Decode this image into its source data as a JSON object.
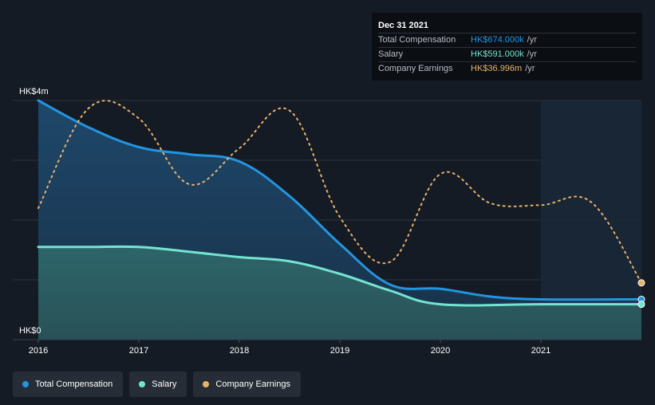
{
  "tooltip": {
    "date": "Dec 31 2021",
    "rows": [
      {
        "label": "Total Compensation",
        "value": "HK$674.000k",
        "unit": "/yr",
        "color": "#2394df"
      },
      {
        "label": "Salary",
        "value": "HK$591.000k",
        "unit": "/yr",
        "color": "#74e4d1"
      },
      {
        "label": "Company Earnings",
        "value": "HK$36.996m",
        "unit": "/yr",
        "color": "#e9b26b"
      }
    ]
  },
  "legend": [
    {
      "label": "Total Compensation",
      "color": "#2394df"
    },
    {
      "label": "Salary",
      "color": "#74e4d1"
    },
    {
      "label": "Company Earnings",
      "color": "#e9b26b"
    }
  ],
  "chart_data": {
    "type": "area",
    "y_top_label": "HK$4m",
    "y_bottom_label": "HK$0",
    "ylim": [
      0,
      4
    ],
    "xlim": [
      2016,
      2022
    ],
    "x_ticks": [
      "2016",
      "2017",
      "2018",
      "2019",
      "2020",
      "2021"
    ],
    "highlight_start": 2021,
    "grid": true,
    "series": [
      {
        "name": "Total Compensation",
        "color": "#2394df",
        "points": [
          [
            2016.0,
            4.0
          ],
          [
            2016.5,
            3.55
          ],
          [
            2017.0,
            3.22
          ],
          [
            2017.5,
            3.1
          ],
          [
            2018.0,
            2.98
          ],
          [
            2018.5,
            2.4
          ],
          [
            2019.0,
            1.6
          ],
          [
            2019.5,
            0.92
          ],
          [
            2020.0,
            0.85
          ],
          [
            2020.5,
            0.72
          ],
          [
            2021.0,
            0.674
          ],
          [
            2022.0,
            0.674
          ]
        ]
      },
      {
        "name": "Salary",
        "color": "#74e4d1",
        "points": [
          [
            2016.0,
            1.55
          ],
          [
            2016.5,
            1.55
          ],
          [
            2017.0,
            1.55
          ],
          [
            2017.5,
            1.47
          ],
          [
            2018.0,
            1.38
          ],
          [
            2018.5,
            1.31
          ],
          [
            2019.0,
            1.1
          ],
          [
            2019.5,
            0.82
          ],
          [
            2020.0,
            0.591
          ],
          [
            2021.0,
            0.591
          ],
          [
            2022.0,
            0.591
          ]
        ]
      },
      {
        "name": "Company Earnings",
        "color": "#e9b26b",
        "points": [
          [
            2016.0,
            2.2
          ],
          [
            2016.5,
            3.87
          ],
          [
            2017.0,
            3.7
          ],
          [
            2017.5,
            2.6
          ],
          [
            2018.0,
            3.2
          ],
          [
            2018.5,
            3.83
          ],
          [
            2019.0,
            2.05
          ],
          [
            2019.5,
            1.3
          ],
          [
            2020.0,
            2.77
          ],
          [
            2020.5,
            2.28
          ],
          [
            2021.0,
            2.25
          ],
          [
            2021.5,
            2.3
          ],
          [
            2022.0,
            0.95
          ]
        ]
      }
    ]
  }
}
